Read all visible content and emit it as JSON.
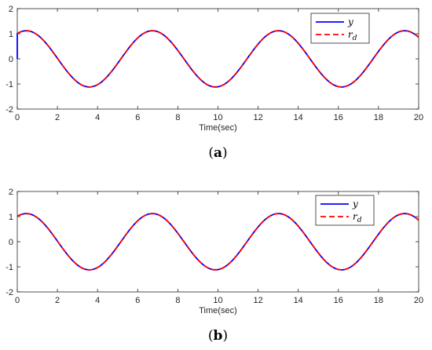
{
  "chart_data": [
    {
      "type": "line",
      "caption": "(a)",
      "xlabel": "Time(sec)",
      "ylabel": "",
      "xlim": [
        0,
        20
      ],
      "ylim": [
        -2,
        2
      ],
      "xticks": [
        0,
        2,
        4,
        6,
        8,
        10,
        12,
        14,
        16,
        18,
        20
      ],
      "yticks": [
        -2,
        -1,
        0,
        1,
        2
      ],
      "grid": false,
      "legend_position": "top-right",
      "series": [
        {
          "name": "y",
          "color": "#0000ff",
          "style": "solid",
          "function": "1.12*sin(x + 1.12)",
          "initial_value": 0
        },
        {
          "name": "r_d",
          "color": "#ff0000",
          "style": "dashed",
          "function": "1.12*sin(x + 1.12)"
        }
      ],
      "legend_labels": [
        {
          "main": "y",
          "sub": ""
        },
        {
          "main": "r",
          "sub": "d"
        }
      ]
    },
    {
      "type": "line",
      "caption": "(b)",
      "xlabel": "Time(sec)",
      "ylabel": "",
      "xlim": [
        0,
        20
      ],
      "ylim": [
        -2,
        2
      ],
      "xticks": [
        0,
        2,
        4,
        6,
        8,
        10,
        12,
        14,
        16,
        18,
        20
      ],
      "yticks": [
        -2,
        -1,
        0,
        1,
        2
      ],
      "grid": false,
      "legend_position": "top-right",
      "series": [
        {
          "name": "y",
          "color": "#0000ff",
          "style": "solid",
          "function": "1.12*sin(x + 1.12)"
        },
        {
          "name": "r_d",
          "color": "#ff0000",
          "style": "dashed",
          "function": "1.12*sin(x + 1.12)"
        }
      ],
      "legend_labels": [
        {
          "main": "y",
          "sub": ""
        },
        {
          "main": "r",
          "sub": "d"
        }
      ]
    }
  ]
}
